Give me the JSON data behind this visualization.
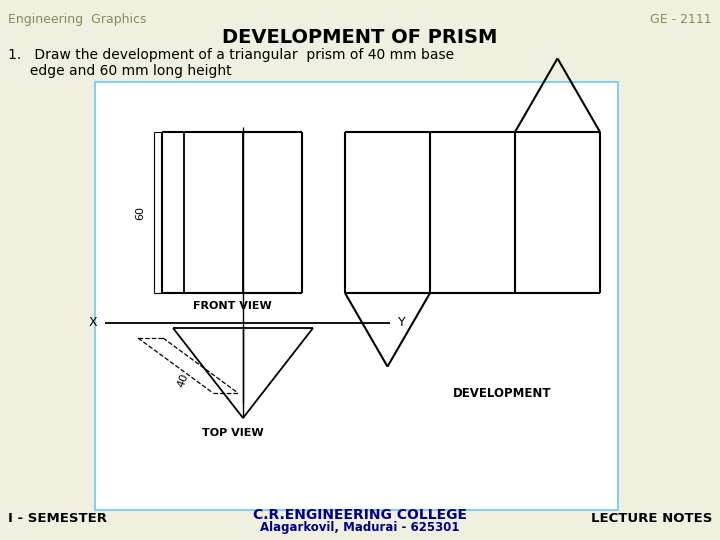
{
  "bg_color": "#f0f0e0",
  "border_color": "#000000",
  "title": "DEVELOPMENT OF PRISM",
  "header_left": "Engineering  Graphics",
  "header_right": "GE - 2111",
  "problem_text_line1": "1.   Draw the development of a triangular  prism of 40 mm base",
  "problem_text_line2": "     edge and 60 mm long height",
  "footer_left": "I - SEMESTER",
  "footer_center": "C.R.ENGINEERING COLLEGE",
  "footer_center2": "Alagarkovil, Madurai - 625301",
  "footer_right": "LECTURE NOTES",
  "line_color": "#000000",
  "text_color_header": "#8b8b5a",
  "text_color_body": "#000000",
  "text_color_footer_center": "#00008b"
}
